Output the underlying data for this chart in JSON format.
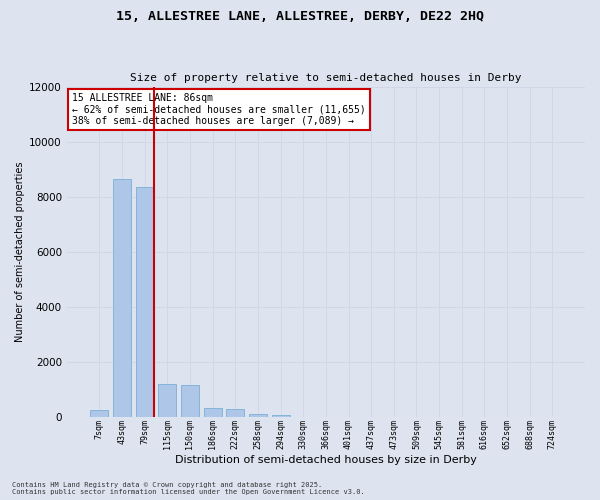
{
  "title_line1": "15, ALLESTREE LANE, ALLESTREE, DERBY, DE22 2HQ",
  "title_line2": "Size of property relative to semi-detached houses in Derby",
  "xlabel": "Distribution of semi-detached houses by size in Derby",
  "ylabel": "Number of semi-detached properties",
  "categories": [
    "7sqm",
    "43sqm",
    "79sqm",
    "115sqm",
    "150sqm",
    "186sqm",
    "222sqm",
    "258sqm",
    "294sqm",
    "330sqm",
    "366sqm",
    "401sqm",
    "437sqm",
    "473sqm",
    "509sqm",
    "545sqm",
    "581sqm",
    "616sqm",
    "652sqm",
    "688sqm",
    "724sqm"
  ],
  "values": [
    250,
    8650,
    8350,
    1200,
    1150,
    320,
    280,
    100,
    60,
    0,
    0,
    0,
    0,
    0,
    0,
    0,
    0,
    0,
    0,
    0,
    0
  ],
  "bar_color": "#aec6e8",
  "bar_edge_color": "#7bafd4",
  "red_line_color": "#cc0000",
  "annotation_title": "15 ALLESTREE LANE: 86sqm",
  "annotation_line1": "← 62% of semi-detached houses are smaller (11,655)",
  "annotation_line2": "38% of semi-detached houses are larger (7,089) →",
  "annotation_box_facecolor": "#ffffff",
  "annotation_box_edgecolor": "#cc0000",
  "grid_color": "#d0d8e8",
  "background_color": "#dde4f0",
  "ylim": [
    0,
    12000
  ],
  "yticks": [
    0,
    2000,
    4000,
    6000,
    8000,
    10000,
    12000
  ],
  "red_line_x": 2.4,
  "footer_line1": "Contains HM Land Registry data © Crown copyright and database right 2025.",
  "footer_line2": "Contains public sector information licensed under the Open Government Licence v3.0."
}
